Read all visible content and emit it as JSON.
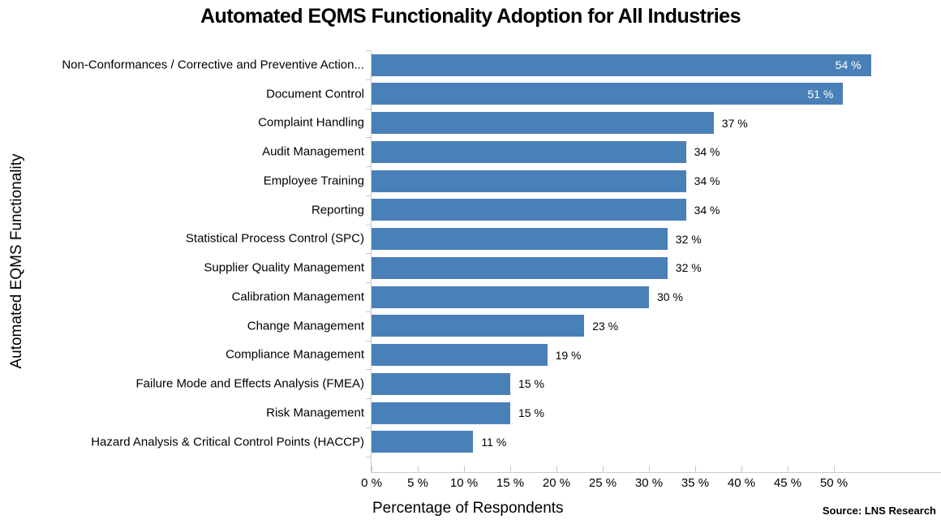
{
  "chart_data": {
    "type": "bar",
    "orientation": "horizontal",
    "title": "Automated EQMS Functionality Adoption for All Industries",
    "xlabel": "Percentage of Respondents",
    "ylabel": "Automated EQMS Functionality",
    "source": "Source: LNS Research",
    "categories": [
      "Non-Conformances / Corrective and Preventive Action...",
      "Document Control",
      "Complaint Handling",
      "Audit Management",
      "Employee Training",
      "Reporting",
      "Statistical Process Control (SPC)",
      "Supplier Quality Management",
      "Calibration Management",
      "Change Management",
      "Compliance Management",
      "Failure Mode and Effects Analysis (FMEA)",
      "Risk Management",
      "Hazard Analysis & Critical Control Points (HACCP)"
    ],
    "values": [
      54,
      51,
      37,
      34,
      34,
      34,
      32,
      32,
      30,
      23,
      19,
      15,
      15,
      11
    ],
    "value_suffix": " %",
    "x_ticks": [
      0,
      5,
      10,
      15,
      20,
      25,
      30,
      35,
      40,
      45,
      50
    ],
    "x_tick_labels": [
      "0 %",
      "5 %",
      "10 %",
      "15 %",
      "20 %",
      "25 %",
      "30 %",
      "35 %",
      "40 %",
      "45 %",
      "50 %"
    ],
    "xlim": [
      0,
      61.6
    ],
    "grid": false,
    "legend": null,
    "bar_color": "#4a80b8",
    "axis_color": "#c9c9c9",
    "value_label_inside_color": "#ffffff",
    "value_label_outside_color": "#000000",
    "background_color": "#ffffff"
  }
}
